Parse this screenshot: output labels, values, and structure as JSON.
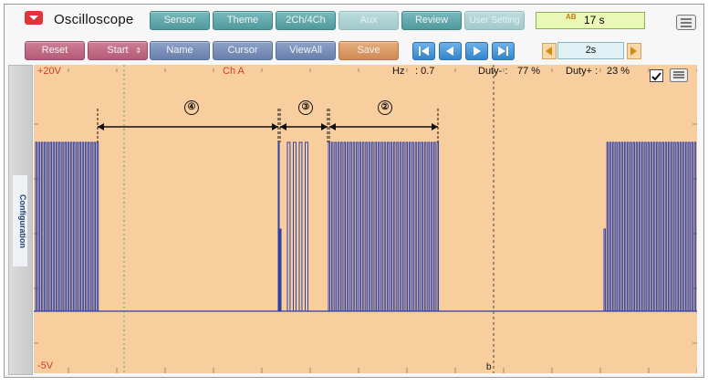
{
  "app": {
    "title": "Oscilloscope"
  },
  "toolbar": {
    "sensor": "Sensor",
    "theme": "Theme",
    "channels": "2Ch/4Ch",
    "aux": "Aux",
    "review": "Review",
    "user_setting": "User Setting",
    "timer": "17 s",
    "timer_badge": "AB",
    "reset": "Reset",
    "start": "Start",
    "name": "Name",
    "cursor": "Cursor",
    "viewall": "ViewAll",
    "save": "Save",
    "time_div": "2s"
  },
  "sidebar": {
    "label": "Configuration"
  },
  "plot": {
    "ymax_label": "+20V",
    "ymin_label": "-5V",
    "channel": "Ch A",
    "hz_label": "Hz",
    "hz_value": ": 0.7",
    "duty_minus_label": "Duty- :",
    "duty_minus_value": "77 %",
    "duty_plus_label": "Duty+ :",
    "duty_plus_value": "23 %",
    "cursor_b": "b",
    "annotations": [
      "④",
      "③",
      "②"
    ]
  },
  "colors": {
    "plot_bg": "#f9ce9f",
    "trace": "#2d3fa8",
    "grid": "#9a8a70",
    "labels": "#d13a2b"
  },
  "icons": [
    "oscilloscope-logo-icon",
    "menu-icon",
    "first-icon",
    "prev-icon",
    "play-icon",
    "last-icon",
    "left-arrow-icon",
    "right-arrow-icon",
    "checkbox-icon"
  ]
}
